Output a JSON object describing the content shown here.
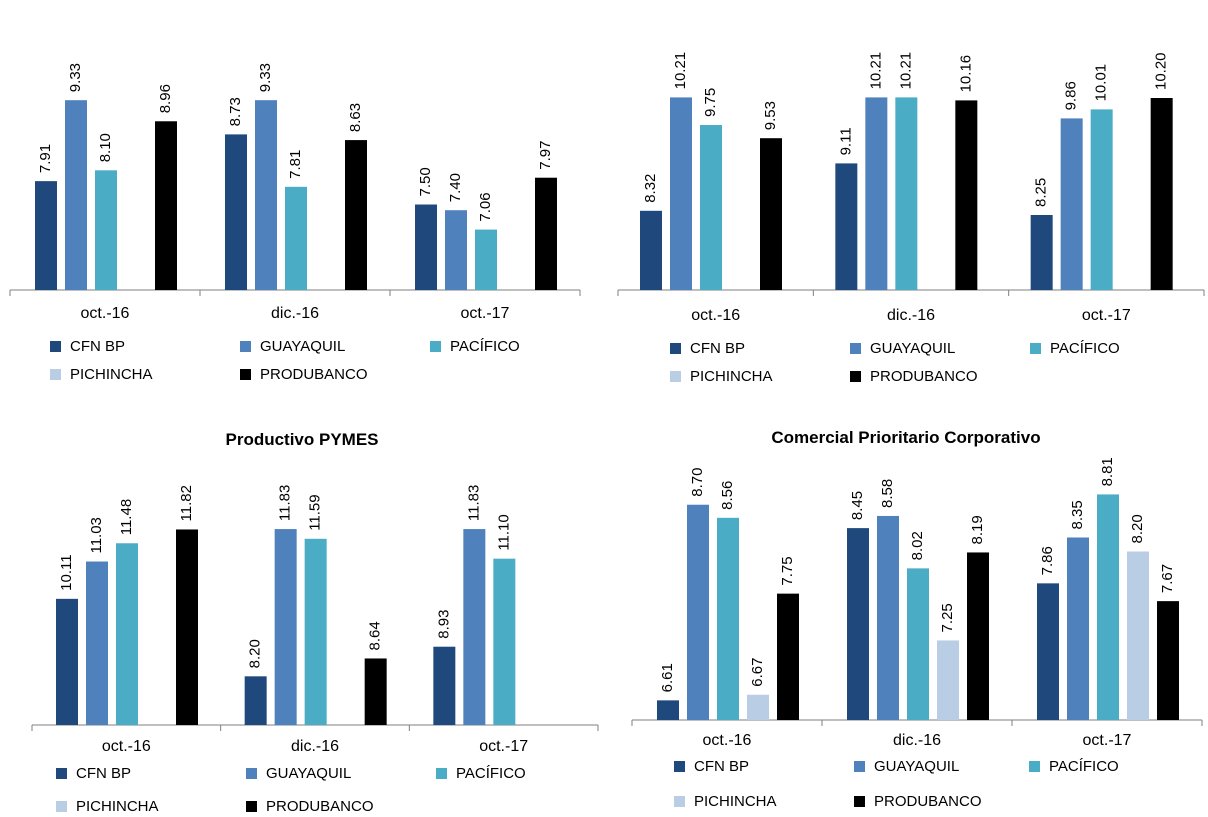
{
  "legend_labels": {
    "cfn": "CFN BP",
    "guayaquil": "GUAYAQUIL",
    "pacifico": "PACÍFICO",
    "pichincha": "PICHINCHA",
    "produbanco": "PRODUBANCO"
  },
  "chart_data": [
    {
      "type": "bar",
      "title": "",
      "categories": [
        "oct.-16",
        "dic.-16",
        "oct.-17"
      ],
      "ylim": [
        6.0,
        10.0
      ],
      "series": [
        {
          "name": "CFN BP",
          "color": "#1f497d",
          "values": [
            7.91,
            8.73,
            7.5
          ]
        },
        {
          "name": "GUAYAQUIL",
          "color": "#4f81bd",
          "values": [
            9.33,
            9.33,
            7.4
          ]
        },
        {
          "name": "PACÍFICO",
          "color": "#4bacc6",
          "values": [
            8.1,
            7.81,
            7.06
          ]
        },
        {
          "name": "PICHINCHA",
          "color": "#b9cde5",
          "values": [
            null,
            null,
            null
          ]
        },
        {
          "name": "PRODUBANCO",
          "color": "#000000",
          "values": [
            8.96,
            8.63,
            7.97
          ]
        }
      ],
      "legend_position": "bottom",
      "grid": false
    },
    {
      "type": "bar",
      "title": "",
      "categories": [
        "oct.-16",
        "dic.-16",
        "oct.-17"
      ],
      "ylim": [
        7.0,
        10.5
      ],
      "series": [
        {
          "name": "CFN BP",
          "color": "#1f497d",
          "values": [
            8.32,
            9.11,
            8.25
          ]
        },
        {
          "name": "GUAYAQUIL",
          "color": "#4f81bd",
          "values": [
            10.21,
            10.21,
            9.86
          ]
        },
        {
          "name": "PACÍFICO",
          "color": "#4bacc6",
          "values": [
            9.75,
            10.21,
            10.01
          ]
        },
        {
          "name": "PICHINCHA",
          "color": "#b9cde5",
          "values": [
            null,
            null,
            null
          ]
        },
        {
          "name": "PRODUBANCO",
          "color": "#000000",
          "values": [
            9.53,
            10.16,
            10.2
          ]
        }
      ],
      "legend_position": "bottom",
      "grid": false
    },
    {
      "type": "bar",
      "title": "Productivo PYMES",
      "categories": [
        "oct.-16",
        "dic.-16",
        "oct.-17"
      ],
      "ylim": [
        7.0,
        12.3
      ],
      "series": [
        {
          "name": "CFN BP",
          "color": "#1f497d",
          "values": [
            10.11,
            8.2,
            8.93
          ]
        },
        {
          "name": "GUAYAQUIL",
          "color": "#4f81bd",
          "values": [
            11.03,
            11.83,
            11.83
          ]
        },
        {
          "name": "PACÍFICO",
          "color": "#4bacc6",
          "values": [
            11.48,
            11.59,
            11.1
          ]
        },
        {
          "name": "PICHINCHA",
          "color": "#b9cde5",
          "values": [
            null,
            null,
            null
          ]
        },
        {
          "name": "PRODUBANCO",
          "color": "#000000",
          "values": [
            11.82,
            8.64,
            null
          ]
        }
      ],
      "legend_position": "bottom",
      "grid": false
    },
    {
      "type": "bar",
      "title": "Comercial Prioritario Corporativo",
      "categories": [
        "oct.-16",
        "dic.-16",
        "oct.-17"
      ],
      "ylim": [
        6.4,
        8.9
      ],
      "series": [
        {
          "name": "CFN BP",
          "color": "#1f497d",
          "values": [
            6.61,
            8.45,
            7.86
          ]
        },
        {
          "name": "GUAYAQUIL",
          "color": "#4f81bd",
          "values": [
            8.7,
            8.58,
            8.35
          ]
        },
        {
          "name": "PACÍFICO",
          "color": "#4bacc6",
          "values": [
            8.56,
            8.02,
            8.81
          ]
        },
        {
          "name": "PICHINCHA",
          "color": "#b9cde5",
          "values": [
            6.67,
            7.25,
            8.2
          ]
        },
        {
          "name": "PRODUBANCO",
          "color": "#000000",
          "values": [
            7.75,
            8.19,
            7.67
          ]
        }
      ],
      "legend_position": "bottom",
      "grid": false
    }
  ]
}
